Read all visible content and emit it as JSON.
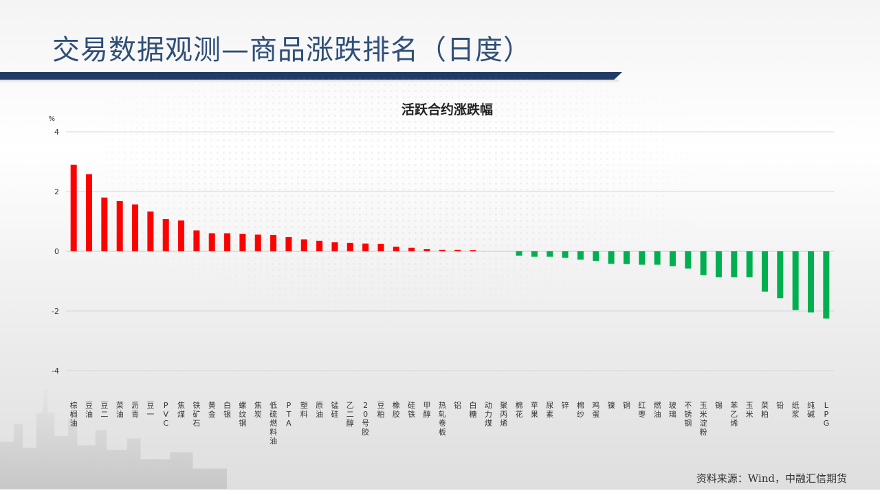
{
  "page": {
    "title": "交易数据观测—商品涨跌排名（日度）",
    "source": "资料来源：Wind，中融汇信期货"
  },
  "colors": {
    "up": "#ff0000",
    "down": "#00b050",
    "title_bar": "#1f3b66",
    "title_text": "#2f4f78"
  },
  "chart_data": {
    "type": "bar",
    "title": "活跃合约涨跌幅",
    "ylabel": "%",
    "ylim": [
      -4,
      4
    ],
    "yticks": [
      4,
      2,
      0,
      -2,
      -4
    ],
    "grid": true,
    "categories": [
      "棕榈油",
      "豆油",
      "豆二",
      "菜油",
      "沥青",
      "豆一",
      "PVC",
      "焦煤",
      "铁矿石",
      "黄金",
      "白银",
      "螺纹钢",
      "焦炭",
      "低硫燃料油",
      "PTA",
      "塑料",
      "原油",
      "锰硅",
      "乙二醇",
      "20号胶",
      "豆粕",
      "橡胶",
      "硅铁",
      "甲醇",
      "热轧卷板",
      "铝",
      "白糖",
      "动力煤",
      "聚丙烯",
      "棉花",
      "苹果",
      "尿素",
      "锌",
      "棉纱",
      "鸡蛋",
      "镍",
      "铜",
      "红枣",
      "燃油",
      "玻璃",
      "不锈钢",
      "玉米淀粉",
      "锡",
      "苯乙烯",
      "玉米",
      "菜粕",
      "铅",
      "纸浆",
      "纯碱",
      "LPG"
    ],
    "values": [
      2.9,
      2.58,
      1.8,
      1.68,
      1.57,
      1.33,
      1.08,
      1.03,
      0.7,
      0.6,
      0.6,
      0.58,
      0.56,
      0.55,
      0.48,
      0.4,
      0.35,
      0.3,
      0.28,
      0.26,
      0.25,
      0.15,
      0.12,
      0.07,
      0.05,
      0.05,
      0.04,
      0.0,
      0.0,
      -0.15,
      -0.18,
      -0.18,
      -0.22,
      -0.28,
      -0.32,
      -0.42,
      -0.43,
      -0.45,
      -0.45,
      -0.5,
      -0.58,
      -0.8,
      -0.87,
      -0.87,
      -0.87,
      -1.35,
      -1.57,
      -1.97,
      -2.05,
      -2.25
    ]
  }
}
